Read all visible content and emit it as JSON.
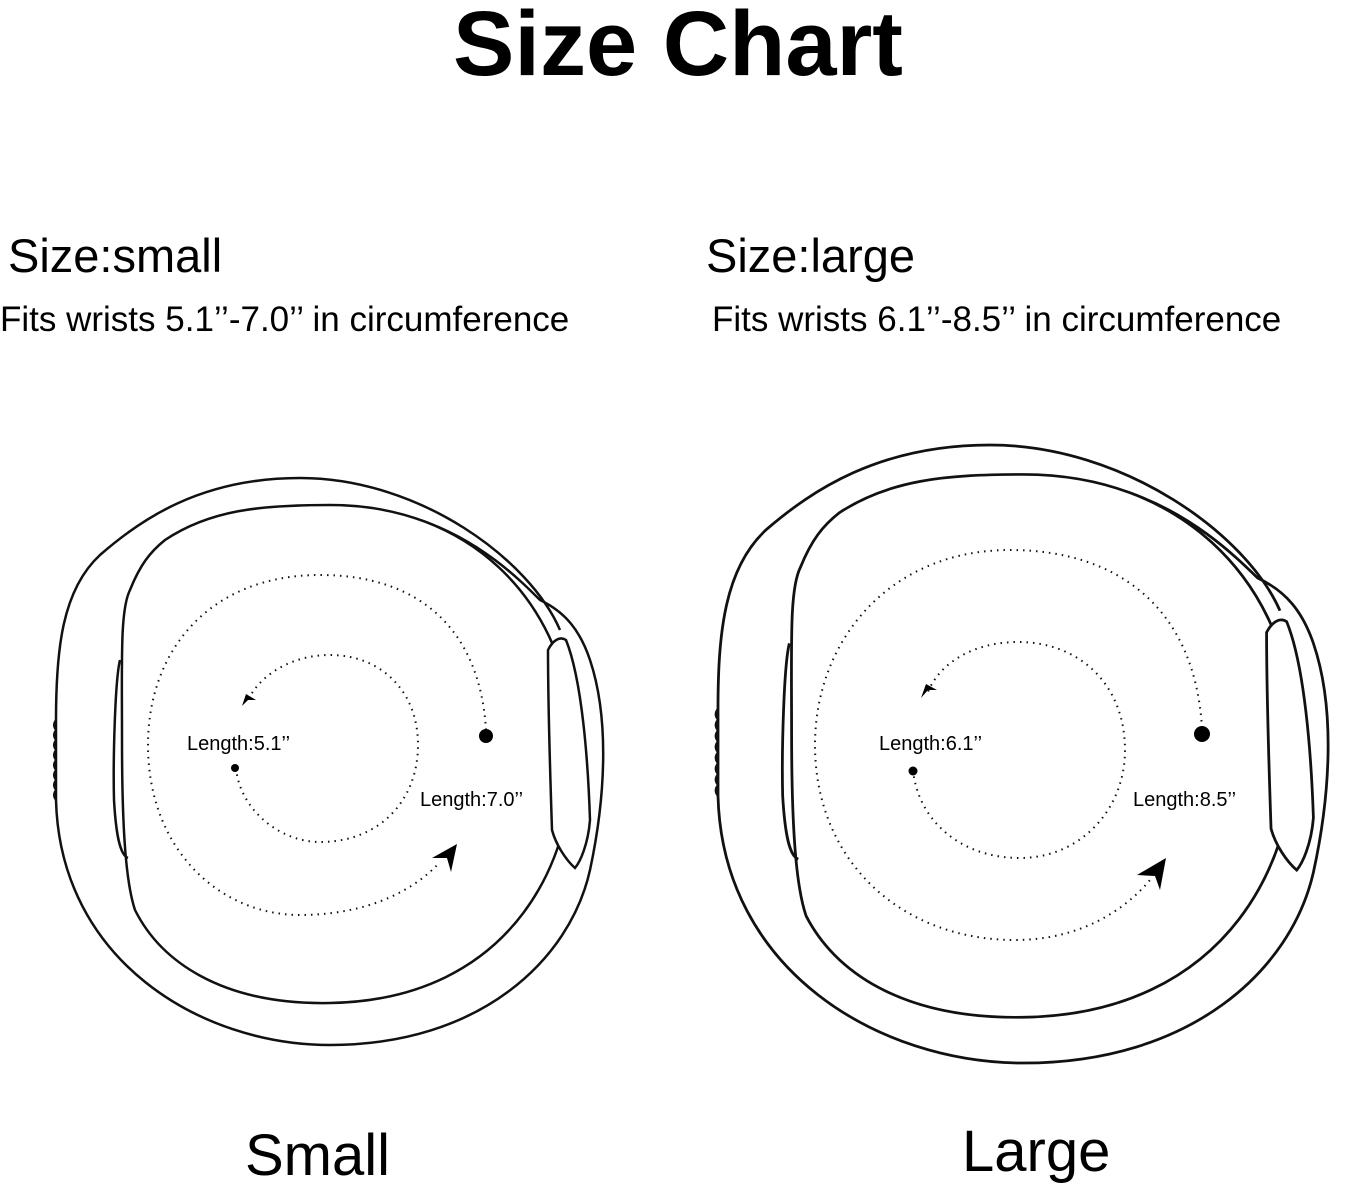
{
  "title": "Size Chart",
  "sizes": [
    {
      "heading": "Size:small",
      "fit": "Fits wrists 5.1’’-7.0’’ in circumference",
      "inner_length": "Length:5.1’’",
      "outer_length": "Length:7.0’’",
      "caption": "Small"
    },
    {
      "heading": "Size:large",
      "fit": "Fits wrists 6.1’’-8.5’’ in circumference",
      "inner_length": "Length:6.1’’",
      "outer_length": "Length:8.5’’",
      "caption": "Large"
    }
  ]
}
